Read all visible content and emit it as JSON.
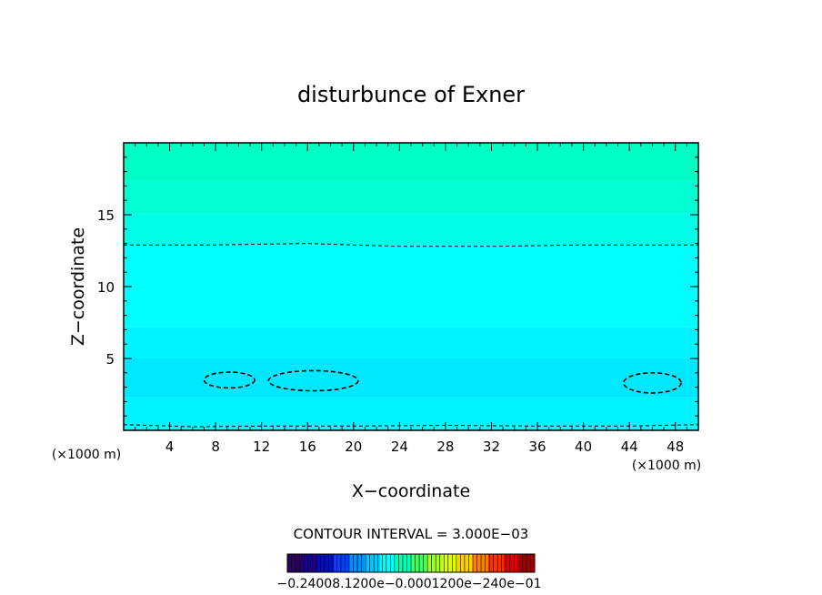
{
  "chart_data": {
    "type": "contour",
    "title": "disturbunce of Exner",
    "xlabel": "X−coordinate",
    "ylabel": "Z−coordinate",
    "x_unit_left": "(×1000 m)",
    "x_unit_right": "(×1000 m)",
    "xlim": [
      0,
      50
    ],
    "ylim": [
      0,
      20
    ],
    "x_ticks": [
      4,
      8,
      12,
      16,
      20,
      24,
      28,
      32,
      36,
      40,
      44,
      48
    ],
    "y_ticks": [
      5,
      10,
      15
    ],
    "fill_bands": [
      {
        "z_from": 0.0,
        "z_to": 0.3,
        "color": "#00ffff"
      },
      {
        "z_from": 0.3,
        "z_to": 2.3,
        "color": "#00f4ff"
      },
      {
        "z_from": 2.3,
        "z_to": 5.0,
        "color": "#00e8ff"
      },
      {
        "z_from": 5.0,
        "z_to": 7.2,
        "color": "#00f4ff"
      },
      {
        "z_from": 7.2,
        "z_to": 12.9,
        "color": "#00ffff"
      },
      {
        "z_from": 12.9,
        "z_to": 15.1,
        "color": "#00ffe6"
      },
      {
        "z_from": 15.1,
        "z_to": 17.4,
        "color": "#00ffd2"
      },
      {
        "z_from": 17.4,
        "z_to": 20.0,
        "color": "#00ffc4"
      }
    ],
    "contour_lines": [
      {
        "style": "dashed",
        "points": [
          [
            0,
            12.9
          ],
          [
            8,
            12.9
          ],
          [
            16,
            13.0
          ],
          [
            24,
            12.8
          ],
          [
            32,
            12.8
          ],
          [
            40,
            12.9
          ],
          [
            50,
            12.9
          ]
        ]
      },
      {
        "style": "dashed",
        "points": [
          [
            0,
            0.4
          ],
          [
            6,
            0.25
          ],
          [
            12,
            0.3
          ],
          [
            20,
            0.3
          ],
          [
            28,
            0.35
          ],
          [
            36,
            0.3
          ],
          [
            44,
            0.3
          ],
          [
            50,
            0.4
          ]
        ]
      }
    ],
    "closed_contours": [
      {
        "style": "dashed",
        "center": [
          9.2,
          3.5
        ],
        "rx": 2.2,
        "ry": 0.55
      },
      {
        "style": "dashed",
        "center": [
          16.5,
          3.45
        ],
        "rx": 3.9,
        "ry": 0.7
      },
      {
        "style": "dashed",
        "center": [
          46.0,
          3.3
        ],
        "rx": 2.5,
        "ry": 0.7
      }
    ],
    "contour_interval_label": "CONTOUR INTERVAL = 3.000E−03",
    "colorbar": {
      "colors": [
        "#2a0060",
        "#1a0090",
        "#0010c0",
        "#0040ff",
        "#0090ff",
        "#00c8ff",
        "#00ffff",
        "#00ffb0",
        "#40ff60",
        "#a0ff20",
        "#e0ff00",
        "#ffd000",
        "#ff8000",
        "#ff3000",
        "#e00000",
        "#a00000"
      ],
      "labels": [
        "−0.240e−01",
        "−0.120e−01",
        "0.000",
        "0.120e−01",
        "0.240e−01"
      ],
      "label_text": "−0.24008.1200e−0.0001200e−240e−01"
    }
  }
}
